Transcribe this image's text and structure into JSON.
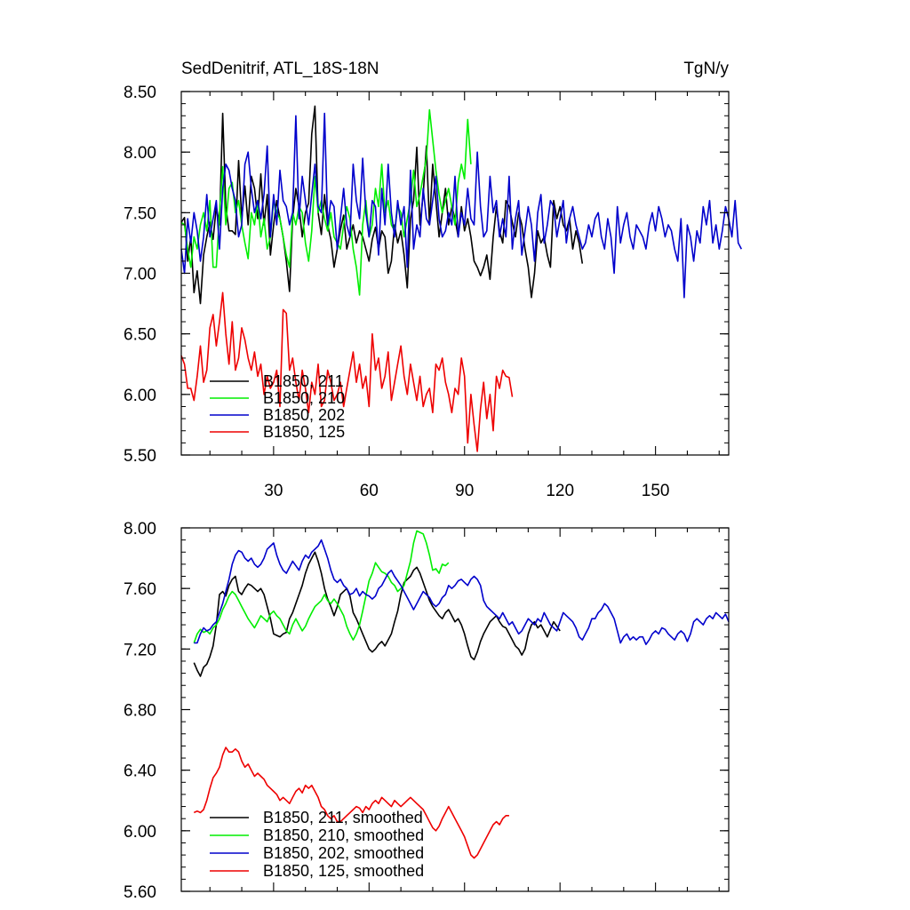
{
  "chart_data": [
    {
      "type": "line",
      "title": "SedDenitrif, ATL_18S-18N",
      "units": "TgN/y",
      "xlim": [
        1,
        173
      ],
      "ylim": [
        5.5,
        8.5
      ],
      "x_ticks": [
        30,
        60,
        90,
        120,
        150
      ],
      "x_tick_labels": [
        "30",
        "60",
        "90",
        "120",
        "150"
      ],
      "y_ticks": [
        5.5,
        6.0,
        6.5,
        7.0,
        7.5,
        8.0,
        8.5
      ],
      "y_tick_labels": [
        "5.50",
        "6.00",
        "6.50",
        "7.00",
        "7.50",
        "8.00",
        "8.50"
      ],
      "legend_position": "bottom-left",
      "series": [
        {
          "name": "B1850, 211",
          "color": "#000000",
          "x_start": 1,
          "values": [
            7.42,
            7.46,
            7.1,
            7.3,
            6.84,
            7.02,
            6.75,
            7.15,
            7.3,
            7.42,
            7.28,
            7.55,
            7.4,
            8.32,
            7.55,
            7.35,
            7.35,
            7.32,
            7.93,
            7.45,
            7.72,
            7.4,
            7.8,
            7.7,
            7.45,
            7.82,
            7.4,
            7.65,
            7.15,
            7.4,
            7.6,
            7.45,
            7.3,
            7.1,
            6.85,
            7.45,
            7.7,
            7.55,
            7.3,
            7.5,
            7.58,
            8.15,
            8.38,
            7.5,
            7.32,
            7.65,
            7.4,
            7.28,
            7.05,
            7.2,
            7.36,
            7.48,
            7.2,
            7.3,
            7.4,
            7.25,
            7.35,
            7.3,
            7.2,
            7.1,
            7.28,
            7.38,
            7.2,
            7.35,
            7.3,
            7.0,
            7.1,
            7.4,
            7.25,
            7.35,
            7.15,
            6.88,
            7.45,
            7.6,
            8.04,
            7.4,
            7.65,
            8.05,
            7.4,
            7.9,
            7.6,
            7.3,
            7.5,
            7.7,
            7.4,
            7.55,
            7.45,
            7.3,
            7.55,
            7.35,
            7.45,
            7.3,
            7.1,
            7.05,
            6.98,
            7.05,
            7.15,
            6.95,
            7.3,
            7.55,
            7.35,
            7.25,
            7.6,
            7.55,
            7.42,
            7.3,
            7.5,
            7.4,
            7.2,
            7.05,
            6.8,
            7.0,
            7.35,
            7.25,
            7.3,
            7.15,
            7.05,
            7.6,
            7.45,
            7.55,
            7.4,
            7.35,
            7.45,
            7.2,
            7.35,
            7.25,
            7.08
          ]
        },
        {
          "name": "B1850, 210",
          "color": "#00ee00",
          "x_start": 1,
          "values": [
            7.42,
            7.4,
            7.2,
            7.05,
            7.3,
            7.2,
            7.4,
            7.5,
            7.35,
            7.6,
            7.05,
            7.05,
            7.5,
            7.88,
            7.4,
            7.7,
            7.75,
            7.5,
            7.6,
            7.4,
            7.25,
            7.12,
            7.5,
            7.4,
            7.6,
            7.3,
            7.45,
            7.2,
            7.3,
            7.6,
            7.5,
            7.45,
            7.3,
            7.15,
            7.05,
            7.5,
            7.4,
            7.55,
            7.5,
            7.25,
            7.1,
            7.35,
            7.8,
            7.5,
            7.6,
            7.45,
            7.35,
            7.5,
            7.3,
            7.25,
            7.2,
            7.4,
            7.55,
            7.45,
            7.2,
            7.05,
            6.82,
            7.4,
            7.6,
            7.3,
            7.4,
            7.7,
            7.55,
            7.9,
            7.5,
            7.6,
            7.4,
            7.35,
            7.55,
            7.5,
            7.3,
            7.45,
            7.6,
            7.85,
            7.55,
            7.65,
            7.8,
            7.95,
            8.35,
            8.1,
            7.85,
            7.65,
            7.5,
            7.6,
            7.7,
            7.55,
            7.4,
            7.75,
            7.9,
            7.78,
            8.27,
            7.9
          ]
        },
        {
          "name": "B1850, 202",
          "color": "#0000cc",
          "x_start": 1,
          "values": [
            7.2,
            7.0,
            7.45,
            7.25,
            7.5,
            7.35,
            7.1,
            7.3,
            7.65,
            7.3,
            7.45,
            7.6,
            7.2,
            7.7,
            7.9,
            7.85,
            7.7,
            7.6,
            7.3,
            7.4,
            7.9,
            8.0,
            7.7,
            7.5,
            7.6,
            7.45,
            7.65,
            8.05,
            7.3,
            7.65,
            7.4,
            7.85,
            7.6,
            7.55,
            7.4,
            7.5,
            8.3,
            7.45,
            7.8,
            7.6,
            7.4,
            7.65,
            7.9,
            7.55,
            7.5,
            8.32,
            7.4,
            7.6,
            7.55,
            7.2,
            7.45,
            7.7,
            7.4,
            7.3,
            7.9,
            7.6,
            7.45,
            7.95,
            7.5,
            7.3,
            7.6,
            7.55,
            7.15,
            7.7,
            7.4,
            7.9,
            7.5,
            7.3,
            7.6,
            7.4,
            7.55,
            7.05,
            7.85,
            7.2,
            7.4,
            7.3,
            7.7,
            7.45,
            7.4,
            7.6,
            7.8,
            7.45,
            7.3,
            7.35,
            7.5,
            7.4,
            7.8,
            7.3,
            7.5,
            7.4,
            7.7,
            7.45,
            7.4,
            8.0,
            7.55,
            7.3,
            7.35,
            7.8,
            7.5,
            7.6,
            7.3,
            7.45,
            7.3,
            7.8,
            7.2,
            7.45,
            7.6,
            7.15,
            7.35,
            7.55,
            7.4,
            7.1,
            7.5,
            7.65,
            7.25,
            7.4,
            7.6,
            7.55,
            7.3,
            7.45,
            7.6,
            7.25,
            7.45,
            7.55,
            7.4,
            7.3,
            7.2,
            7.25,
            7.4,
            7.3,
            7.45,
            7.5,
            7.3,
            7.2,
            7.45,
            7.3,
            7.0,
            7.55,
            7.25,
            7.4,
            7.5,
            7.3,
            7.2,
            7.4,
            7.35,
            7.3,
            7.2,
            7.4,
            7.5,
            7.35,
            7.55,
            7.45,
            7.3,
            7.4,
            7.35,
            7.2,
            7.1,
            7.45,
            6.8,
            7.4,
            7.3,
            7.1,
            7.35,
            7.25,
            7.55,
            7.4,
            7.6,
            7.25,
            7.4,
            7.2,
            7.35,
            7.55,
            7.45,
            7.3,
            7.6,
            7.25,
            7.2
          ]
        },
        {
          "name": "B1850, 125",
          "color": "#ee0000",
          "x_start": 1,
          "values": [
            6.32,
            6.25,
            6.05,
            6.05,
            5.95,
            6.15,
            6.4,
            6.1,
            6.2,
            6.55,
            6.66,
            6.4,
            6.6,
            6.84,
            6.5,
            6.25,
            6.6,
            6.2,
            6.3,
            6.55,
            6.45,
            6.3,
            6.2,
            6.35,
            6.15,
            6.25,
            6.0,
            6.15,
            6.05,
            6.1,
            6.2,
            5.9,
            6.7,
            6.67,
            6.2,
            6.3,
            6.1,
            5.95,
            6.2,
            6.05,
            5.85,
            6.1,
            6.0,
            6.25,
            5.9,
            5.95,
            6.2,
            6.1,
            5.95,
            6.0,
            6.1,
            5.9,
            6.05,
            6.2,
            6.35,
            6.1,
            6.25,
            6.05,
            6.15,
            5.9,
            6.5,
            6.2,
            6.3,
            6.05,
            6.15,
            6.35,
            5.95,
            6.1,
            6.25,
            6.4,
            6.15,
            6.0,
            6.25,
            6.1,
            5.95,
            6.15,
            5.9,
            6.0,
            6.05,
            5.85,
            6.25,
            6.2,
            6.3,
            6.1,
            6.0,
            5.85,
            6.05,
            6.0,
            6.3,
            6.15,
            5.6,
            6.0,
            5.75,
            5.53,
            5.88,
            6.1,
            5.8,
            6.0,
            5.7,
            6.15,
            6.05,
            6.2,
            6.15,
            6.14,
            5.98
          ]
        }
      ]
    },
    {
      "type": "line",
      "title": "",
      "xlim": [
        1,
        173
      ],
      "ylim": [
        5.6,
        8.0
      ],
      "y_ticks": [
        5.6,
        6.0,
        6.4,
        6.8,
        7.2,
        7.6,
        8.0
      ],
      "y_tick_labels": [
        "5.60",
        "6.00",
        "6.40",
        "6.80",
        "7.20",
        "7.60",
        "8.00"
      ],
      "legend_position": "bottom-left",
      "series": [
        {
          "name": "B1850, 211, smoothed",
          "color": "#000000",
          "x_start": 5,
          "values": [
            7.11,
            7.06,
            7.02,
            7.08,
            7.1,
            7.15,
            7.22,
            7.36,
            7.56,
            7.58,
            7.55,
            7.62,
            7.66,
            7.68,
            7.58,
            7.56,
            7.6,
            7.63,
            7.62,
            7.6,
            7.58,
            7.6,
            7.56,
            7.48,
            7.4,
            7.3,
            7.29,
            7.28,
            7.3,
            7.31,
            7.4,
            7.44,
            7.5,
            7.56,
            7.62,
            7.7,
            7.76,
            7.8,
            7.84,
            7.78,
            7.7,
            7.6,
            7.53,
            7.48,
            7.42,
            7.48,
            7.56,
            7.58,
            7.6,
            7.55,
            7.44,
            7.4,
            7.35,
            7.3,
            7.25,
            7.2,
            7.18,
            7.2,
            7.23,
            7.25,
            7.22,
            7.26,
            7.3,
            7.38,
            7.45,
            7.56,
            7.64,
            7.66,
            7.68,
            7.72,
            7.74,
            7.7,
            7.64,
            7.58,
            7.52,
            7.48,
            7.45,
            7.42,
            7.4,
            7.44,
            7.46,
            7.42,
            7.38,
            7.4,
            7.36,
            7.3,
            7.22,
            7.15,
            7.13,
            7.18,
            7.25,
            7.3,
            7.34,
            7.38,
            7.4,
            7.42,
            7.38,
            7.35,
            7.34,
            7.3,
            7.26,
            7.22,
            7.2,
            7.16,
            7.2,
            7.3,
            7.36,
            7.38,
            7.34,
            7.36,
            7.32,
            7.28,
            7.33,
            7.38,
            7.35,
            7.32
          ]
        },
        {
          "name": "B1850, 210, smoothed",
          "color": "#00ee00",
          "x_start": 5,
          "values": [
            7.24,
            7.3,
            7.33,
            7.31,
            7.32,
            7.3,
            7.34,
            7.36,
            7.4,
            7.46,
            7.5,
            7.55,
            7.58,
            7.56,
            7.52,
            7.48,
            7.44,
            7.4,
            7.37,
            7.34,
            7.38,
            7.42,
            7.4,
            7.38,
            7.43,
            7.45,
            7.42,
            7.4,
            7.36,
            7.32,
            7.3,
            7.36,
            7.4,
            7.36,
            7.32,
            7.35,
            7.4,
            7.44,
            7.48,
            7.5,
            7.52,
            7.56,
            7.52,
            7.5,
            7.53,
            7.5,
            7.46,
            7.42,
            7.35,
            7.3,
            7.26,
            7.3,
            7.36,
            7.45,
            7.55,
            7.65,
            7.7,
            7.77,
            7.74,
            7.71,
            7.7,
            7.68,
            7.64,
            7.62,
            7.58,
            7.6,
            7.62,
            7.7,
            7.78,
            7.9,
            7.98,
            7.97,
            7.96,
            7.9,
            7.82,
            7.72,
            7.73,
            7.7,
            7.76,
            7.75,
            7.77
          ]
        },
        {
          "name": "B1850, 202, smoothed",
          "color": "#0000cc",
          "x_start": 5,
          "values": [
            7.24,
            7.24,
            7.3,
            7.34,
            7.32,
            7.33,
            7.36,
            7.38,
            7.44,
            7.5,
            7.58,
            7.66,
            7.76,
            7.82,
            7.85,
            7.84,
            7.8,
            7.78,
            7.8,
            7.76,
            7.74,
            7.76,
            7.8,
            7.86,
            7.88,
            7.9,
            7.82,
            7.76,
            7.72,
            7.7,
            7.74,
            7.78,
            7.75,
            7.72,
            7.78,
            7.82,
            7.8,
            7.84,
            7.86,
            7.88,
            7.92,
            7.86,
            7.8,
            7.72,
            7.66,
            7.64,
            7.66,
            7.62,
            7.6,
            7.56,
            7.57,
            7.6,
            7.55,
            7.58,
            7.56,
            7.55,
            7.53,
            7.55,
            7.6,
            7.62,
            7.66,
            7.7,
            7.72,
            7.68,
            7.65,
            7.62,
            7.58,
            7.54,
            7.5,
            7.46,
            7.5,
            7.54,
            7.58,
            7.56,
            7.54,
            7.5,
            7.48,
            7.5,
            7.54,
            7.56,
            7.62,
            7.6,
            7.62,
            7.65,
            7.66,
            7.64,
            7.62,
            7.66,
            7.68,
            7.66,
            7.62,
            7.52,
            7.48,
            7.46,
            7.44,
            7.42,
            7.4,
            7.44,
            7.4,
            7.36,
            7.38,
            7.34,
            7.3,
            7.32,
            7.36,
            7.4,
            7.38,
            7.36,
            7.4,
            7.38,
            7.44,
            7.4,
            7.36,
            7.34,
            7.32,
            7.38,
            7.44,
            7.42,
            7.4,
            7.38,
            7.34,
            7.28,
            7.26,
            7.3,
            7.34,
            7.4,
            7.4,
            7.44,
            7.46,
            7.5,
            7.48,
            7.44,
            7.4,
            7.32,
            7.24,
            7.28,
            7.3,
            7.26,
            7.28,
            7.26,
            7.28,
            7.28,
            7.23,
            7.26,
            7.3,
            7.32,
            7.3,
            7.34,
            7.33,
            7.3,
            7.28,
            7.26,
            7.3,
            7.32,
            7.3,
            7.25,
            7.3,
            7.38,
            7.4,
            7.38,
            7.36,
            7.4,
            7.42,
            7.4,
            7.44,
            7.42,
            7.4,
            7.43,
            7.38
          ]
        },
        {
          "name": "B1850, 125, smoothed",
          "color": "#ee0000",
          "x_start": 5,
          "values": [
            6.12,
            6.13,
            6.12,
            6.14,
            6.2,
            6.28,
            6.35,
            6.38,
            6.42,
            6.5,
            6.55,
            6.52,
            6.52,
            6.54,
            6.52,
            6.46,
            6.42,
            6.44,
            6.4,
            6.36,
            6.38,
            6.36,
            6.34,
            6.3,
            6.28,
            6.26,
            6.24,
            6.2,
            6.22,
            6.2,
            6.18,
            6.22,
            6.26,
            6.28,
            6.25,
            6.3,
            6.28,
            6.3,
            6.26,
            6.22,
            6.16,
            6.14,
            6.1,
            6.08,
            6.1,
            6.06,
            6.06,
            6.08,
            6.1,
            6.12,
            6.14,
            6.16,
            6.15,
            6.12,
            6.16,
            6.14,
            6.18,
            6.2,
            6.18,
            6.22,
            6.2,
            6.18,
            6.16,
            6.2,
            6.18,
            6.16,
            6.18,
            6.2,
            6.22,
            6.2,
            6.18,
            6.16,
            6.14,
            6.1,
            6.06,
            6.02,
            6.0,
            6.03,
            6.08,
            6.12,
            6.16,
            6.12,
            6.08,
            6.04,
            6.0,
            5.96,
            5.9,
            5.84,
            5.82,
            5.84,
            5.88,
            5.92,
            5.96,
            6.0,
            6.04,
            6.06,
            6.04,
            6.08,
            6.1,
            6.1
          ]
        }
      ]
    }
  ]
}
